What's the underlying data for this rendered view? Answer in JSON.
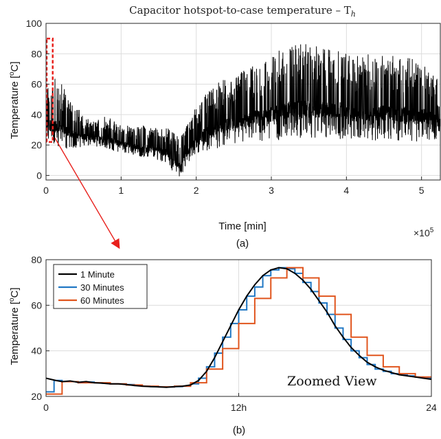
{
  "chart_data": [
    {
      "type": "line",
      "title": "Capacitor hotspot-to-case temperature – T",
      "title_subscript": "h",
      "xlabel": "Time [min]",
      "ylabel": "Temperature [°C]",
      "ylabel_base": "Temperature [",
      "ylabel_sup": "o",
      "ylabel_unit": "C]",
      "x_exponent_base": "×10",
      "x_exponent_power": "5",
      "panel_label": "(a)",
      "xlim": [
        0,
        5.25
      ],
      "ylim": [
        -3,
        100
      ],
      "xticks": [
        0,
        1,
        2,
        3,
        4,
        5
      ],
      "yticks": [
        0,
        20,
        40,
        60,
        80,
        100
      ],
      "grid": true,
      "color": "#000000",
      "x_units_note": "x values in 10^5 minutes",
      "envelope": [
        {
          "x": 0.0,
          "lo": 22,
          "hi": 58
        },
        {
          "x": 0.1,
          "lo": 18,
          "hi": 64
        },
        {
          "x": 0.2,
          "lo": 18,
          "hi": 62
        },
        {
          "x": 0.3,
          "lo": 17,
          "hi": 52
        },
        {
          "x": 0.4,
          "lo": 18,
          "hi": 46
        },
        {
          "x": 0.5,
          "lo": 19,
          "hi": 40
        },
        {
          "x": 0.6,
          "lo": 19,
          "hi": 35
        },
        {
          "x": 0.7,
          "lo": 18,
          "hi": 38
        },
        {
          "x": 0.8,
          "lo": 18,
          "hi": 40
        },
        {
          "x": 0.9,
          "lo": 16,
          "hi": 36
        },
        {
          "x": 1.0,
          "lo": 15,
          "hi": 34
        },
        {
          "x": 1.1,
          "lo": 14,
          "hi": 33
        },
        {
          "x": 1.2,
          "lo": 13,
          "hi": 32
        },
        {
          "x": 1.3,
          "lo": 12,
          "hi": 33
        },
        {
          "x": 1.4,
          "lo": 11,
          "hi": 32
        },
        {
          "x": 1.5,
          "lo": 10,
          "hi": 32
        },
        {
          "x": 1.6,
          "lo": 8,
          "hi": 31
        },
        {
          "x": 1.7,
          "lo": 2,
          "hi": 30
        },
        {
          "x": 1.78,
          "lo": -2,
          "hi": 24
        },
        {
          "x": 1.85,
          "lo": 4,
          "hi": 32
        },
        {
          "x": 1.95,
          "lo": 12,
          "hi": 42
        },
        {
          "x": 2.1,
          "lo": 16,
          "hi": 52
        },
        {
          "x": 2.3,
          "lo": 18,
          "hi": 62
        },
        {
          "x": 2.5,
          "lo": 20,
          "hi": 65
        },
        {
          "x": 2.7,
          "lo": 21,
          "hi": 72
        },
        {
          "x": 2.9,
          "lo": 22,
          "hi": 76
        },
        {
          "x": 3.1,
          "lo": 23,
          "hi": 82
        },
        {
          "x": 3.3,
          "lo": 24,
          "hi": 88
        },
        {
          "x": 3.5,
          "lo": 24,
          "hi": 86
        },
        {
          "x": 3.7,
          "lo": 24,
          "hi": 84
        },
        {
          "x": 3.9,
          "lo": 24,
          "hi": 84
        },
        {
          "x": 4.1,
          "lo": 23,
          "hi": 78
        },
        {
          "x": 4.3,
          "lo": 23,
          "hi": 80
        },
        {
          "x": 4.5,
          "lo": 23,
          "hi": 80
        },
        {
          "x": 4.7,
          "lo": 23,
          "hi": 78
        },
        {
          "x": 4.9,
          "lo": 22,
          "hi": 78
        },
        {
          "x": 5.1,
          "lo": 22,
          "hi": 74
        },
        {
          "x": 5.25,
          "lo": 22,
          "hi": 60
        }
      ],
      "zoom_box": {
        "x0": 0.0,
        "x1": 0.08,
        "y0": 22,
        "y1": 90,
        "color": "#e8201c"
      }
    },
    {
      "type": "line",
      "panel_label": "(b)",
      "ylabel": "Temperature [°C]",
      "ylabel_base": "Temperature [",
      "ylabel_sup": "o",
      "ylabel_unit": "C]",
      "xlim": [
        0,
        24
      ],
      "ylim": [
        20,
        80
      ],
      "xticks": [
        0,
        12,
        24
      ],
      "xticklabels": [
        "0",
        "12h",
        "24"
      ],
      "yticks": [
        20,
        40,
        60,
        80
      ],
      "grid": true,
      "legend": "top-left",
      "annotation": "Zoomed View",
      "series": [
        {
          "name": "1 Minute",
          "color": "#000000",
          "x": [
            0,
            0.3,
            0.6,
            1,
            1.5,
            2,
            2.5,
            3,
            3.5,
            4,
            4.5,
            5,
            5.5,
            6,
            6.5,
            7,
            7.5,
            8,
            8.5,
            9,
            9.5,
            10,
            10.5,
            11,
            11.5,
            12,
            12.5,
            13,
            13.5,
            14,
            14.5,
            15,
            15.5,
            16,
            16.5,
            17,
            17.5,
            18,
            18.5,
            19,
            19.5,
            20,
            20.5,
            21,
            21.5,
            22,
            22.5,
            23,
            23.5,
            24
          ],
          "y": [
            28,
            27.5,
            27,
            26.5,
            26.8,
            26.2,
            26.5,
            26,
            25.8,
            25.5,
            25.5,
            25.2,
            24.8,
            24.5,
            24.3,
            24.2,
            24,
            24.3,
            24.5,
            25,
            27,
            31,
            37,
            44,
            51,
            58,
            64,
            69,
            73,
            75.5,
            76.5,
            76,
            74,
            71,
            67,
            62,
            57,
            51,
            46,
            41.5,
            38,
            35,
            33,
            31.5,
            30.5,
            29.5,
            29,
            28.5,
            28,
            27.5
          ]
        },
        {
          "name": "30 Minutes",
          "color": "#1f77c4",
          "x": [
            0,
            0.5,
            1,
            1.5,
            2,
            2.5,
            3,
            3.5,
            4,
            4.5,
            5,
            5.5,
            6,
            6.5,
            7,
            7.5,
            8,
            8.5,
            9,
            9.5,
            10,
            10.5,
            11,
            11.5,
            12,
            12.5,
            13,
            13.5,
            14,
            14.5,
            15,
            15.5,
            16,
            16.5,
            17,
            17.5,
            18,
            18.5,
            19,
            19.5,
            20,
            20.5,
            21,
            21.5,
            22,
            22.5,
            23,
            23.5
          ],
          "y": [
            22,
            27,
            26.5,
            26.5,
            26,
            26.3,
            26,
            25.8,
            25.5,
            25.5,
            25.2,
            24.8,
            24.5,
            24.3,
            24.2,
            24.1,
            24.3,
            24.5,
            25.5,
            28,
            33,
            39,
            46,
            52,
            58,
            64,
            68,
            73,
            75.5,
            76.5,
            76,
            74,
            70,
            66,
            61,
            56,
            50,
            45,
            40,
            37,
            34,
            32,
            31,
            30,
            29.5,
            29,
            28.5,
            28
          ]
        },
        {
          "name": "60 Minutes",
          "color": "#e0541c",
          "x": [
            0,
            1,
            2,
            3,
            4,
            5,
            6,
            7,
            8,
            9,
            10,
            11,
            12,
            13,
            14,
            15,
            16,
            17,
            18,
            19,
            20,
            21,
            22,
            23
          ],
          "y": [
            21,
            26.5,
            26,
            26,
            25.5,
            25,
            24.5,
            24.2,
            24.5,
            26,
            32,
            41,
            52,
            63,
            72,
            76.5,
            72,
            64,
            56,
            46,
            38,
            33,
            30,
            28.5
          ]
        }
      ]
    }
  ]
}
